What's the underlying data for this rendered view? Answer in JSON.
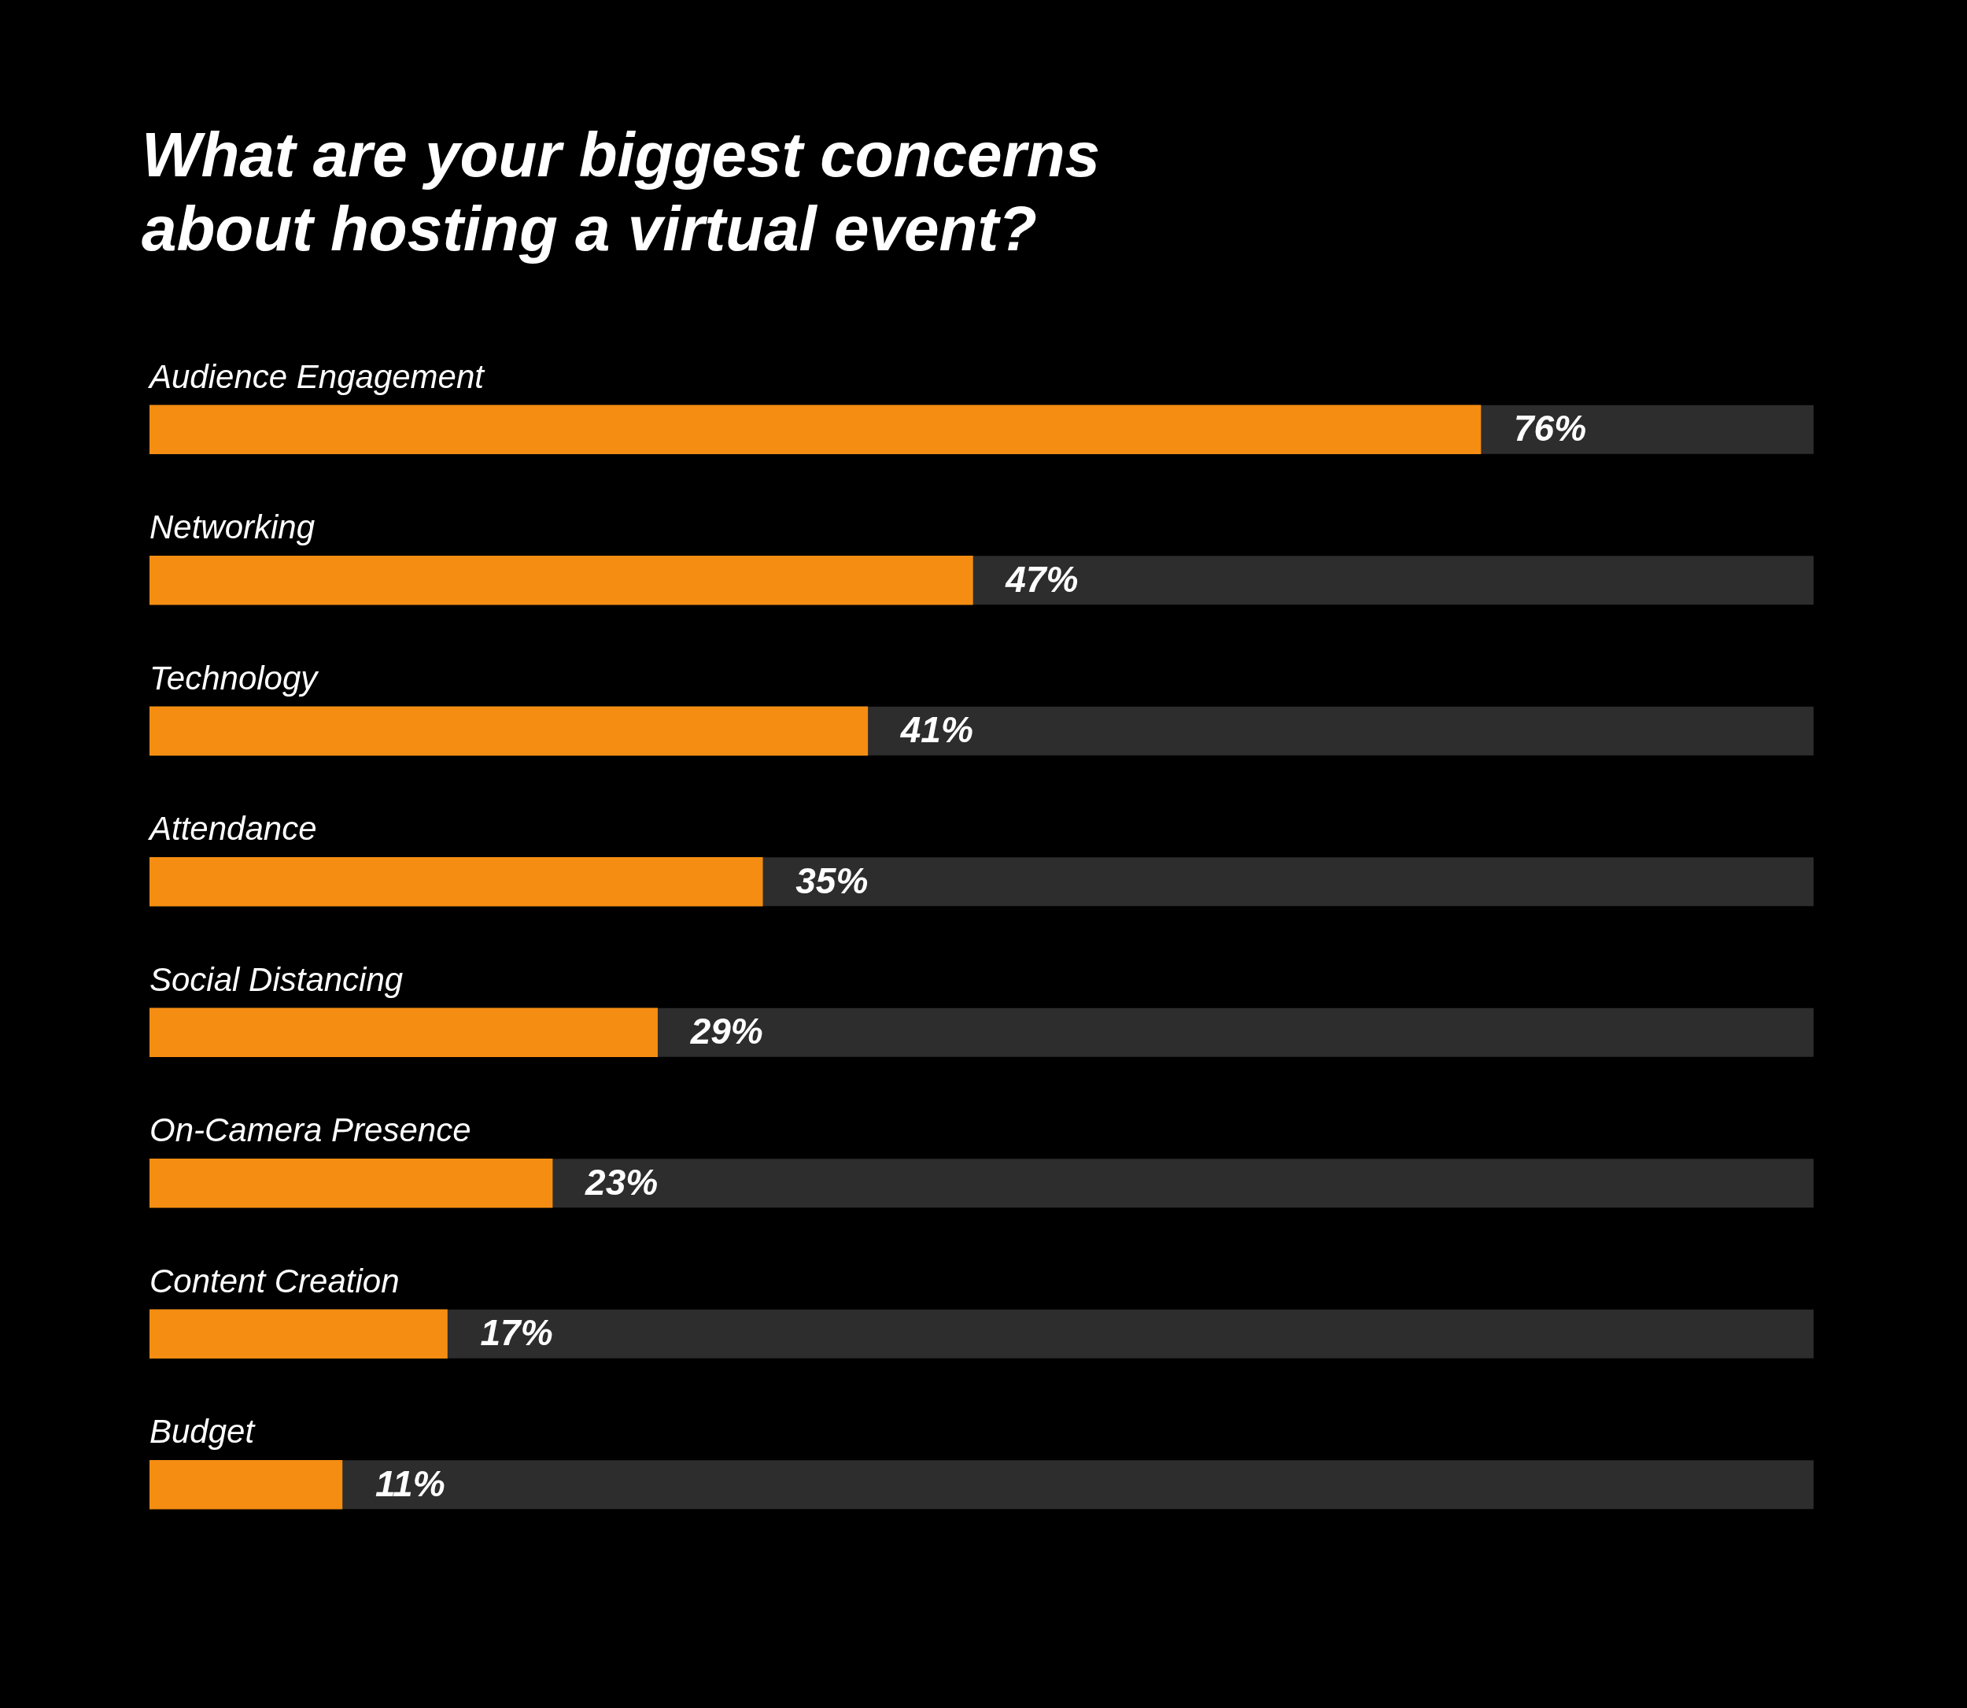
{
  "chart_data": {
    "type": "bar",
    "orientation": "horizontal",
    "title": "What are your biggest concerns about hosting a virtual event?",
    "categories": [
      "Audience Engagement",
      "Networking",
      "Technology",
      "Attendance",
      "Social Distancing",
      "On-Camera Presence",
      "Content Creation",
      "Budget"
    ],
    "values": [
      76,
      47,
      41,
      35,
      29,
      23,
      17,
      11
    ],
    "color": "#f58d12",
    "xlim": [
      0,
      95
    ],
    "data_labels": true,
    "value_labels": [
      "76%",
      "47%",
      "41%",
      "35%",
      "29%",
      "23%",
      "17%",
      "11%"
    ],
    "grid": false,
    "legend": false,
    "tick_labels": false
  }
}
